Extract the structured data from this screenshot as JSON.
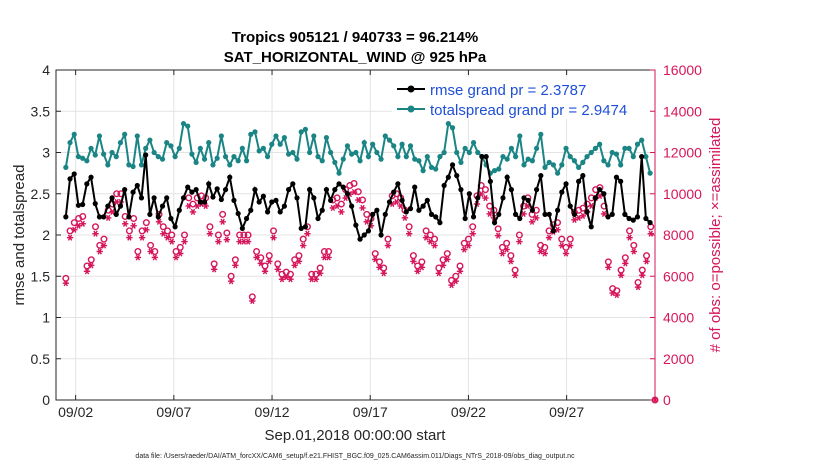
{
  "chart_data": {
    "type": "line",
    "title_line1": "Tropics 905121 / 940733 = 96.214%",
    "title_line2": "SAT_HORIZONTAL_WIND @ 925 hPa",
    "xlabel": "Sep.01,2018 00:00:00 start",
    "ylabel_left": "rmse and totalspread",
    "ylabel_right": "# of obs: o=possible; ×=assimilated",
    "footer": "data file: /Users/raeder/DAI/ATM_forcXX/CAM6_setup/f.e21.FHIST_BGC.f09_025.CAM6assim.011/Diags_NTrS_2018-09/obs_diag_output.nc",
    "xlim": [
      0,
      30.5
    ],
    "ylim_left": [
      0,
      4
    ],
    "ylim_right": [
      0,
      16000
    ],
    "x_ticks": [
      1,
      6,
      11,
      16,
      21,
      26
    ],
    "x_tick_labels": [
      "09/02",
      "09/07",
      "09/12",
      "09/17",
      "09/22",
      "09/27"
    ],
    "y_ticks_left": [
      "0",
      "0.5",
      "1",
      "1.5",
      "2",
      "2.5",
      "3",
      "3.5",
      "4"
    ],
    "y_ticks_right": [
      "0",
      "2000",
      "4000",
      "6000",
      "8000",
      "10000",
      "12000",
      "14000",
      "16000"
    ],
    "grid": true,
    "legend_position": "top-right",
    "colors": {
      "rmse": "#000000",
      "totalspread": "#1b8585",
      "obs": "#d6165b",
      "legend_text": "#1f4fd6"
    },
    "series": [
      {
        "name": "rmse grand pr = 2.3787",
        "values": [
          2.22,
          2.68,
          2.74,
          2.36,
          2.37,
          2.62,
          2.7,
          2.38,
          2.22,
          2.22,
          2.35,
          2.45,
          2.25,
          2.35,
          2.55,
          2.22,
          2.52,
          2.6,
          2.45,
          2.97,
          2.25,
          2.45,
          2.22,
          2.35,
          2.45,
          2.2,
          2.1,
          2.3,
          2.45,
          2.58,
          2.52,
          2.55,
          2.4,
          2.4,
          2.62,
          2.46,
          2.56,
          2.43,
          2.55,
          2.7,
          2.42,
          2.26,
          2.08,
          2.2,
          2.3,
          2.55,
          2.4,
          2.47,
          2.28,
          2.4,
          2.42,
          2.28,
          2.35,
          2.55,
          2.62,
          2.45,
          2.08,
          2.1,
          2.55,
          2.45,
          2.2,
          2.3,
          2.55,
          2.42,
          2.55,
          2.62,
          2.58,
          2.5,
          2.35,
          2.12,
          1.95,
          2.0,
          2.05,
          2.25,
          2.3,
          2.0,
          2.25,
          2.4,
          2.52,
          2.62,
          2.42,
          2.28,
          2.32,
          2.58,
          2.3,
          2.35,
          2.42,
          2.25,
          2.22,
          2.15,
          2.6,
          2.7,
          2.85,
          2.72,
          2.55,
          2.2,
          2.5,
          2.22,
          2.45,
          2.95,
          2.95,
          2.65,
          2.15,
          2.25,
          2.45,
          2.7,
          2.55,
          2.25,
          2.2,
          2.45,
          2.42,
          2.3,
          2.55,
          2.72,
          2.25,
          2.25,
          2.05,
          2.3,
          2.52,
          2.62,
          2.35,
          2.25,
          2.65,
          2.72,
          2.28,
          2.1,
          2.45,
          2.55,
          2.5,
          2.22,
          2.25,
          2.7,
          2.65,
          2.25,
          2.2,
          2.18,
          2.22,
          2.95,
          2.2,
          2.15
        ]
      },
      {
        "name": "totalspread grand pr = 2.9474",
        "values": [
          2.82,
          3.12,
          3.22,
          2.95,
          2.93,
          2.9,
          3.05,
          2.97,
          3.2,
          2.98,
          2.85,
          3.0,
          2.95,
          3.12,
          3.22,
          2.85,
          2.83,
          3.2,
          2.85,
          3.05,
          3.15,
          3.0,
          2.95,
          2.92,
          3.12,
          3.08,
          2.95,
          3.05,
          3.35,
          3.32,
          2.98,
          2.88,
          3.05,
          2.92,
          3.12,
          2.85,
          2.93,
          3.2,
          2.95,
          2.85,
          2.95,
          2.9,
          3.05,
          2.9,
          3.22,
          3.25,
          3.02,
          3.05,
          2.95,
          3.1,
          3.2,
          3.1,
          3.18,
          2.98,
          3.0,
          2.92,
          3.25,
          3.28,
          3.0,
          3.2,
          2.95,
          2.9,
          3.18,
          3.0,
          2.88,
          2.75,
          2.92,
          3.08,
          2.98,
          3.0,
          2.9,
          3.12,
          2.95,
          3.1,
          3.0,
          2.92,
          3.2,
          3.15,
          3.08,
          2.95,
          3.1,
          2.95,
          3.08,
          2.92,
          2.9,
          2.78,
          2.95,
          2.82,
          2.8,
          2.95,
          3.0,
          3.35,
          3.3,
          3.0,
          2.88,
          3.05,
          3.0,
          3.12,
          3.0,
          2.95,
          2.85,
          2.75,
          2.78,
          2.8,
          2.95,
          2.92,
          3.05,
          2.95,
          3.2,
          2.85,
          2.92,
          2.9,
          3.05,
          3.22,
          2.82,
          2.88,
          2.85,
          2.75,
          2.85,
          3.05,
          2.95,
          2.9,
          2.82,
          2.88,
          2.95,
          3.0,
          3.05,
          3.1,
          2.9,
          2.85,
          3.0,
          2.98,
          2.85,
          3.05,
          3.05,
          2.95,
          3.1,
          3.15,
          2.95,
          2.75
        ]
      }
    ],
    "obs_possible": [
      5900,
      8200,
      8600,
      8800,
      8900,
      6500,
      6800,
      8400,
      7500,
      7800,
      9200,
      9500,
      10000,
      10000,
      8900,
      8200,
      8800,
      7200,
      8200,
      8600,
      7500,
      7200,
      9000,
      8400,
      8200,
      8000,
      7200,
      7400,
      8000,
      9800,
      9500,
      9800,
      9900,
      9800,
      8400,
      6600,
      8000,
      9000,
      8100,
      6000,
      6800,
      8000,
      8000,
      8000,
      5000,
      7200,
      6900,
      6500,
      7000,
      8200,
      6600,
      6100,
      6200,
      6100,
      6800,
      7000,
      7800,
      8400,
      6100,
      6100,
      6400,
      7200,
      7200,
      9700,
      9800,
      9500,
      10200,
      10400,
      10500,
      10100,
      9700,
      9000,
      8800,
      7100,
      6700,
      6400,
      7800,
      9900,
      10000,
      9800,
      9200,
      8400,
      7000,
      6500,
      6700,
      8200,
      8000,
      7800,
      6400,
      6800,
      7100,
      5800,
      6000,
      6500,
      7600,
      7800,
      8400,
      9900,
      10400,
      10200,
      9400,
      9200,
      8300,
      7400,
      7600,
      7000,
      6300,
      8000,
      9400,
      9800,
      9000,
      9200,
      7500,
      7400,
      8200,
      8500,
      8600,
      7800,
      7400,
      7800,
      9100,
      9200,
      9300,
      9500,
      9800,
      10200,
      10300,
      9400,
      6700,
      5400,
      5300,
      6300,
      6900,
      8200,
      7500,
      5700,
      6300,
      7000,
      8400,
      0
    ]
  }
}
